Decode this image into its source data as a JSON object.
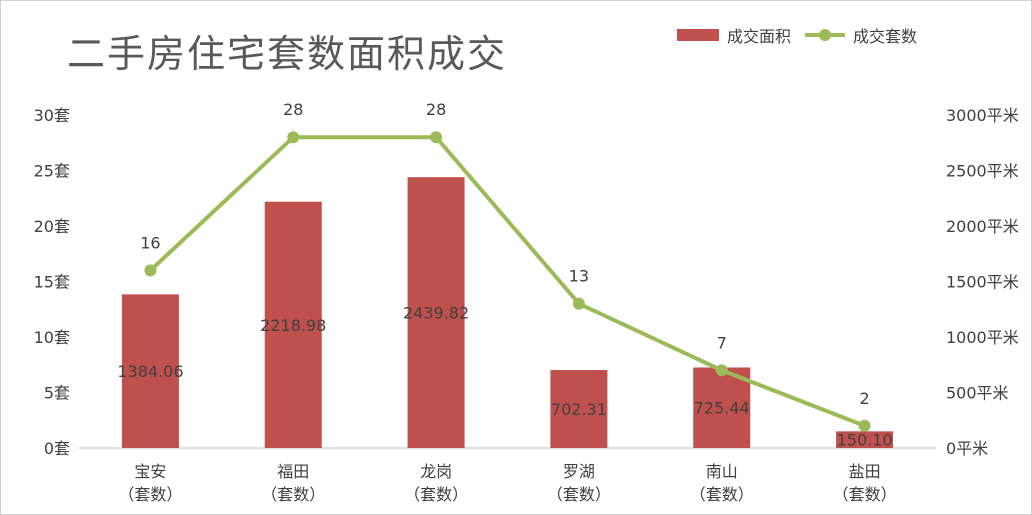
{
  "chart_data": {
    "type": "bar+line",
    "title": "二手房住宅套数面积成交",
    "categories": [
      [
        "宝安",
        "（套数）"
      ],
      [
        "福田",
        "（套数）"
      ],
      [
        "龙岗",
        "（套数）"
      ],
      [
        "罗湖",
        "（套数）"
      ],
      [
        "南山",
        "（套数）"
      ],
      [
        "盐田",
        "（套数）"
      ]
    ],
    "series": [
      {
        "name": "成交面积",
        "type": "bar",
        "axis": "right",
        "color": "#C0504D",
        "values": [
          1384.06,
          2218.98,
          2439.82,
          702.31,
          725.44,
          150.1
        ],
        "labels": [
          "1384.06",
          "2218.98",
          "2439.82",
          "702.31",
          "725.44",
          "150.10"
        ]
      },
      {
        "name": "成交套数",
        "type": "line",
        "axis": "left",
        "color": "#9BBB59",
        "values": [
          16,
          28,
          28,
          13,
          7,
          2
        ],
        "labels": [
          "16",
          "28",
          "28",
          "13",
          "7",
          "2"
        ]
      }
    ],
    "left_axis": {
      "ylim": [
        0,
        30
      ],
      "ticks": [
        0,
        5,
        10,
        15,
        20,
        25,
        30
      ],
      "tick_labels": [
        "0套",
        "5套",
        "10套",
        "15套",
        "20套",
        "25套",
        "30套"
      ]
    },
    "right_axis": {
      "ylim": [
        0,
        3000
      ],
      "ticks": [
        0,
        500,
        1000,
        1500,
        2000,
        2500,
        3000
      ],
      "tick_labels": [
        "0平米",
        "500平米",
        "1000平米",
        "1500平米",
        "2000平米",
        "2500平米",
        "3000平米"
      ]
    },
    "grid": false,
    "legend_position": "top-right"
  }
}
